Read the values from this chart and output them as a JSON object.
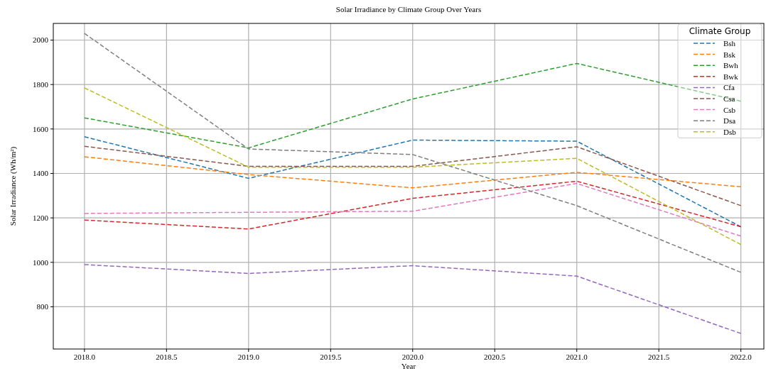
{
  "chart_data": {
    "type": "line",
    "title": "Solar Irradiance by Climate Group Over Years",
    "xlabel": "Year",
    "ylabel": "Solar Irradiance (Wh/m²)",
    "legend_title": "Climate Group",
    "legend": "top right",
    "grid": true,
    "line_style": "dashed",
    "marker": "none",
    "x": [
      2018,
      2019,
      2020,
      2021,
      2022
    ],
    "xlim": [
      2017.81,
      2022.14
    ],
    "xticks": [
      {
        "value": 2018,
        "label": "2018.0"
      },
      {
        "value": 2018.5,
        "label": "2018.5"
      },
      {
        "value": 2019,
        "label": "2019.0"
      },
      {
        "value": 2019.5,
        "label": "2019.5"
      },
      {
        "value": 2020,
        "label": "2020.0"
      },
      {
        "value": 2020.5,
        "label": "2020.5"
      },
      {
        "value": 2021,
        "label": "2021.0"
      },
      {
        "value": 2021.5,
        "label": "2021.5"
      },
      {
        "value": 2022,
        "label": "2022.0"
      }
    ],
    "ylim": [
      610,
      2075
    ],
    "yticks": [
      800,
      1000,
      1200,
      1400,
      1600,
      1800,
      2000
    ],
    "series": [
      {
        "name": "Bsh",
        "color": "#1f77b4",
        "values": [
          1565,
          1378,
          1550,
          1545,
          1160
        ]
      },
      {
        "name": "Bsk",
        "color": "#ff7f0e",
        "values": [
          1475,
          1395,
          1335,
          1405,
          1340
        ]
      },
      {
        "name": "Bwh",
        "color": "#2ca02c",
        "values": [
          1650,
          1515,
          1735,
          1895,
          1725
        ]
      },
      {
        "name": "Bwk",
        "color": "#d62728",
        "values": [
          1190,
          1150,
          1288,
          1365,
          1160
        ]
      },
      {
        "name": "Cfa",
        "color": "#9467bd",
        "values": [
          990,
          950,
          985,
          938,
          680
        ]
      },
      {
        "name": "Csa",
        "color": "#8c564b",
        "values": [
          1522,
          1432,
          1432,
          1520,
          1255
        ]
      },
      {
        "name": "Csb",
        "color": "#e377c2",
        "values": [
          1220,
          1225,
          1230,
          1355,
          1118
        ]
      },
      {
        "name": "Dsa",
        "color": "#7f7f7f",
        "values": [
          2030,
          1510,
          1485,
          1255,
          955
        ]
      },
      {
        "name": "Dsb",
        "color": "#bcbd22",
        "values": [
          1785,
          1428,
          1428,
          1468,
          1080
        ]
      }
    ]
  }
}
